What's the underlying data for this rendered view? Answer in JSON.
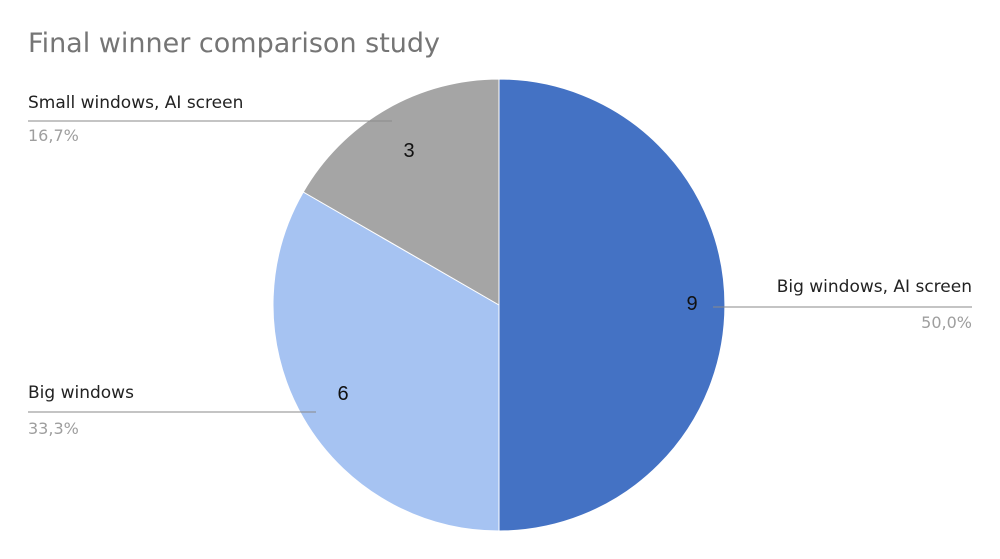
{
  "chart_data": {
    "type": "pie",
    "title": "Final winner comparison study",
    "categories": [
      "Big windows, AI screen",
      "Big windows",
      "Small windows, AI screen"
    ],
    "values": [
      9,
      6,
      3
    ],
    "percent_labels": [
      "50,0%",
      "33,3%",
      "16,7%"
    ],
    "value_labels": [
      "9",
      "6",
      "3"
    ],
    "colors": [
      "#4472C4",
      "#A6C3F2",
      "#A5A5A5"
    ],
    "start_angle_deg": 0,
    "direction": "clockwise",
    "legend": "none"
  }
}
